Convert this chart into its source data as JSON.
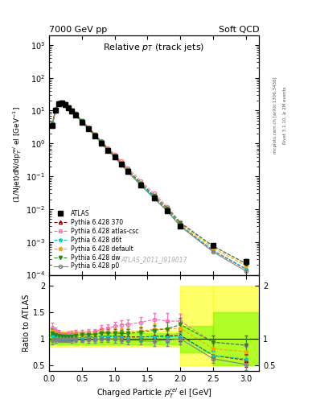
{
  "title_left": "7000 GeV pp",
  "title_right": "Soft QCD",
  "main_title": "Relative p$_{T}$ (track jets)",
  "xlabel": "Charged Particle $p^{rel}_{T}$ el [GeV]",
  "ylabel_main": "(1/Njet)dN/dp$^{rel}_{T}$ el [GeV$^{-1}$]",
  "ylabel_ratio": "Ratio to ATLAS",
  "watermark": "ATLAS_2011_I919017",
  "right_label1": "Rivet 3.1.10, ≥ 2M events",
  "right_label2": "mcplots.cern.ch [arXiv:1306.3436]",
  "atlas_x": [
    0.05,
    0.1,
    0.15,
    0.2,
    0.25,
    0.3,
    0.35,
    0.4,
    0.5,
    0.6,
    0.7,
    0.8,
    0.9,
    1.0,
    1.1,
    1.2,
    1.4,
    1.6,
    1.8,
    2.0,
    2.5,
    3.0
  ],
  "atlas_y": [
    3.5,
    10.0,
    16.0,
    17.0,
    15.0,
    12.0,
    9.5,
    7.5,
    4.5,
    2.8,
    1.7,
    1.0,
    0.6,
    0.38,
    0.23,
    0.14,
    0.055,
    0.022,
    0.009,
    0.003,
    0.0008,
    0.00025
  ],
  "atlas_yerr": [
    0.3,
    0.5,
    0.8,
    0.8,
    0.7,
    0.6,
    0.5,
    0.4,
    0.2,
    0.15,
    0.09,
    0.06,
    0.04,
    0.025,
    0.015,
    0.01,
    0.004,
    0.002,
    0.001,
    0.0003,
    0.0001,
    5e-05
  ],
  "py370_x": [
    0.05,
    0.1,
    0.15,
    0.2,
    0.25,
    0.3,
    0.35,
    0.4,
    0.5,
    0.6,
    0.7,
    0.8,
    0.9,
    1.0,
    1.1,
    1.2,
    1.4,
    1.6,
    1.8,
    2.0,
    2.5,
    3.0
  ],
  "py370_y": [
    3.8,
    10.5,
    16.5,
    17.2,
    15.2,
    12.2,
    9.7,
    7.7,
    4.6,
    2.9,
    1.75,
    1.05,
    0.63,
    0.4,
    0.24,
    0.145,
    0.057,
    0.023,
    0.0095,
    0.0032,
    0.00055,
    0.00015
  ],
  "py370_color": "#8B0000",
  "pyatlas_x": [
    0.05,
    0.1,
    0.15,
    0.2,
    0.25,
    0.3,
    0.35,
    0.4,
    0.5,
    0.6,
    0.7,
    0.8,
    0.9,
    1.0,
    1.1,
    1.2,
    1.4,
    1.6,
    1.8,
    2.0,
    2.5,
    3.0
  ],
  "pyatlas_y": [
    4.2,
    11.5,
    17.8,
    18.2,
    16.0,
    13.0,
    10.4,
    8.3,
    5.0,
    3.15,
    1.92,
    1.18,
    0.72,
    0.47,
    0.29,
    0.178,
    0.072,
    0.03,
    0.012,
    0.004,
    0.00075,
    0.00022
  ],
  "pyatlas_color": "#FF69B4",
  "pyd6t_x": [
    0.05,
    0.1,
    0.15,
    0.2,
    0.25,
    0.3,
    0.35,
    0.4,
    0.5,
    0.6,
    0.7,
    0.8,
    0.9,
    1.0,
    1.1,
    1.2,
    1.4,
    1.6,
    1.8,
    2.0,
    2.5,
    3.0
  ],
  "pyd6t_y": [
    3.7,
    10.3,
    16.3,
    17.1,
    15.1,
    12.1,
    9.6,
    7.65,
    4.58,
    2.87,
    1.74,
    1.05,
    0.625,
    0.392,
    0.236,
    0.143,
    0.0565,
    0.0228,
    0.0093,
    0.00315,
    0.00055,
    0.000155
  ],
  "pyd6t_color": "#00CED1",
  "pydefault_x": [
    0.05,
    0.1,
    0.15,
    0.2,
    0.25,
    0.3,
    0.35,
    0.4,
    0.5,
    0.6,
    0.7,
    0.8,
    0.9,
    1.0,
    1.1,
    1.2,
    1.4,
    1.6,
    1.8,
    2.0,
    2.5,
    3.0
  ],
  "pydefault_y": [
    4.0,
    11.0,
    17.2,
    17.8,
    15.8,
    12.7,
    10.1,
    8.1,
    4.85,
    3.05,
    1.86,
    1.13,
    0.675,
    0.428,
    0.258,
    0.158,
    0.063,
    0.026,
    0.0107,
    0.0036,
    0.00065,
    0.00019
  ],
  "pydefault_color": "#FFA500",
  "pydw_x": [
    0.05,
    0.1,
    0.15,
    0.2,
    0.25,
    0.3,
    0.35,
    0.4,
    0.5,
    0.6,
    0.7,
    0.8,
    0.9,
    1.0,
    1.1,
    1.2,
    1.4,
    1.6,
    1.8,
    2.0,
    2.5,
    3.0
  ],
  "pydw_y": [
    3.85,
    10.7,
    17.0,
    17.8,
    15.7,
    12.6,
    10.0,
    8.0,
    4.82,
    3.02,
    1.84,
    1.11,
    0.665,
    0.421,
    0.253,
    0.154,
    0.062,
    0.0255,
    0.0107,
    0.0038,
    0.00075,
    0.00022
  ],
  "pydw_color": "#228B22",
  "pyp0_x": [
    0.05,
    0.1,
    0.15,
    0.2,
    0.25,
    0.3,
    0.35,
    0.4,
    0.5,
    0.6,
    0.7,
    0.8,
    0.9,
    1.0,
    1.1,
    1.2,
    1.4,
    1.6,
    1.8,
    2.0,
    2.5,
    3.0
  ],
  "pyp0_y": [
    3.4,
    9.8,
    15.8,
    16.8,
    14.8,
    11.8,
    9.3,
    7.4,
    4.4,
    2.75,
    1.67,
    1.0,
    0.6,
    0.378,
    0.227,
    0.136,
    0.053,
    0.021,
    0.0088,
    0.003,
    0.0005,
    0.00013
  ],
  "pyp0_color": "#808080",
  "xlim": [
    0,
    3.2
  ],
  "ylim_main": [
    0.0001,
    2000
  ],
  "ylim_ratio": [
    0.4,
    2.2
  ],
  "ratio_yticks": [
    0.5,
    1.0,
    1.5,
    2.0
  ],
  "ratio_yticklabels": [
    "0.5",
    "1",
    "1.5",
    "2"
  ]
}
